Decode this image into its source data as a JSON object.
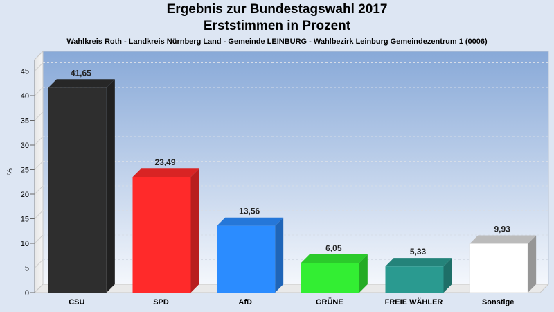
{
  "chart_data": {
    "type": "bar",
    "title": "Ergebnis zur Bundestagswahl 2017",
    "subtitle": "Erststimmen in Prozent",
    "description_line": "Wahlkreis Roth - Landkreis Nürnberg Land - Gemeinde LEINBURG - Wahlbezirk Leinburg Gemeindezentrum 1 (0006)",
    "ylabel": "%",
    "xlabel": "",
    "ylim": [
      0,
      48
    ],
    "yticks": [
      0,
      5,
      10,
      15,
      20,
      25,
      30,
      35,
      40,
      45
    ],
    "categories": [
      "CSU",
      "SPD",
      "AfD",
      "GRÜNE",
      "FREIE WÄHLER",
      "Sonstige"
    ],
    "values": [
      41.65,
      23.49,
      13.56,
      6.05,
      5.33,
      9.93
    ],
    "value_labels": [
      "41,65",
      "23,49",
      "13,56",
      "6,05",
      "5,33",
      "9,93"
    ],
    "colors": [
      "#2e2e2e",
      "#ff2a2a",
      "#2b8cff",
      "#33ee33",
      "#2a9a90",
      "#ffffff"
    ],
    "grid": true,
    "legend": "none"
  }
}
